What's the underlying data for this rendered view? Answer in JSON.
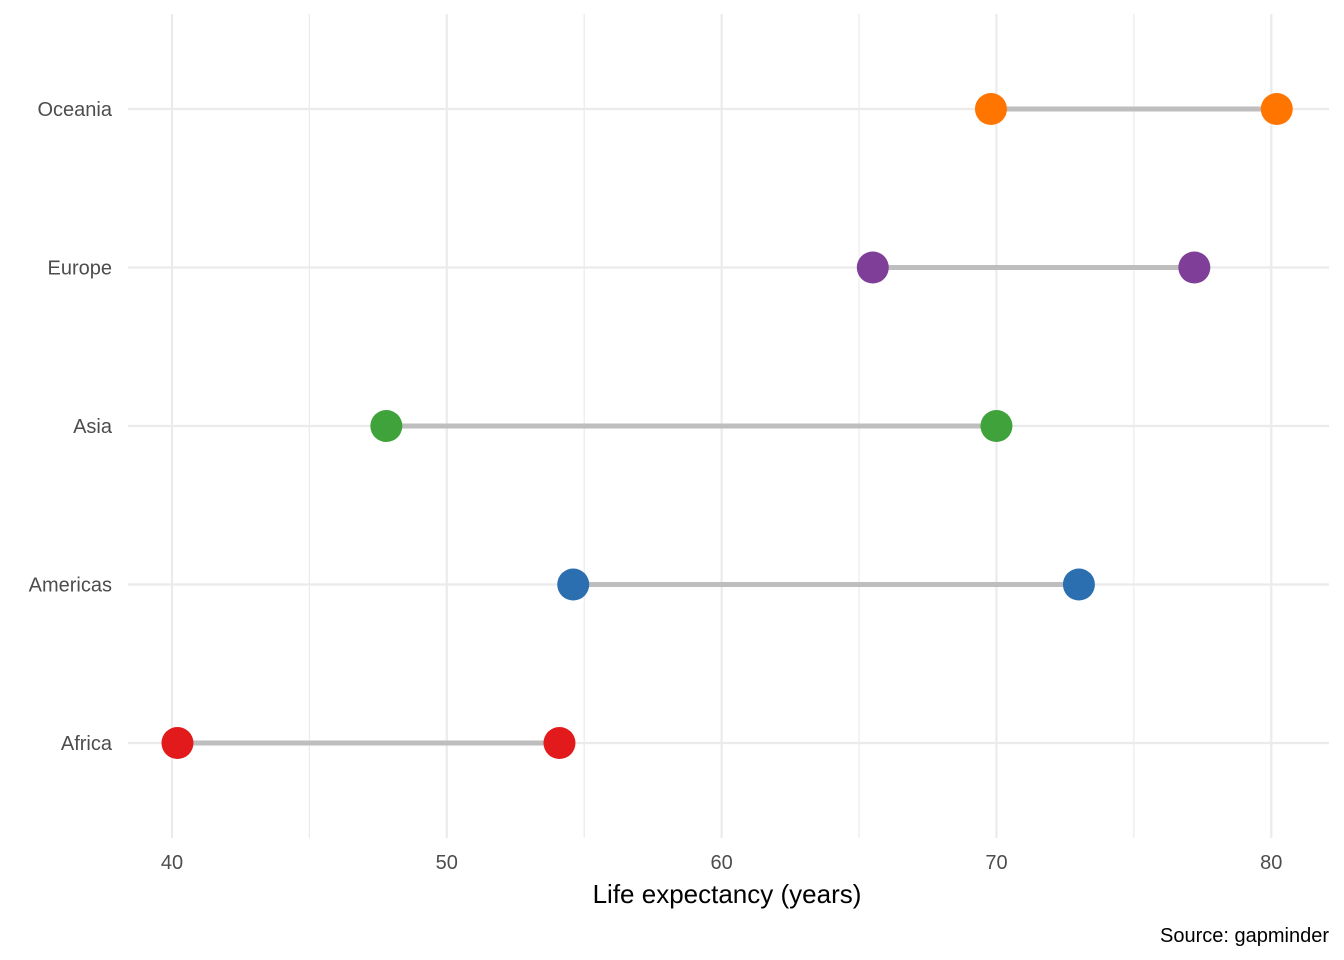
{
  "chart_data": {
    "type": "dumbbell",
    "title": "",
    "xlabel": "Life expectancy (years)",
    "ylabel": "",
    "caption": "Source: gapminder",
    "xlim": [
      38.4,
      82.1
    ],
    "x_ticks": [
      40,
      50,
      60,
      70,
      80
    ],
    "x_minor_ticks": [
      45,
      55,
      65,
      75
    ],
    "grid": true,
    "legend": "none",
    "categories": [
      "Africa",
      "Americas",
      "Asia",
      "Europe",
      "Oceania"
    ],
    "series": [
      {
        "values": [
          40.2,
          54.6,
          47.8,
          65.5,
          69.8
        ]
      },
      {
        "values": [
          54.1,
          73.0,
          70.0,
          77.2,
          80.2
        ]
      }
    ],
    "category_colors": [
      "#e31a1c",
      "#2c6fb0",
      "#3fa23a",
      "#7f3f98",
      "#ff7500"
    ],
    "segment_color": "#bebebe",
    "grid_color": "#ebebeb"
  }
}
